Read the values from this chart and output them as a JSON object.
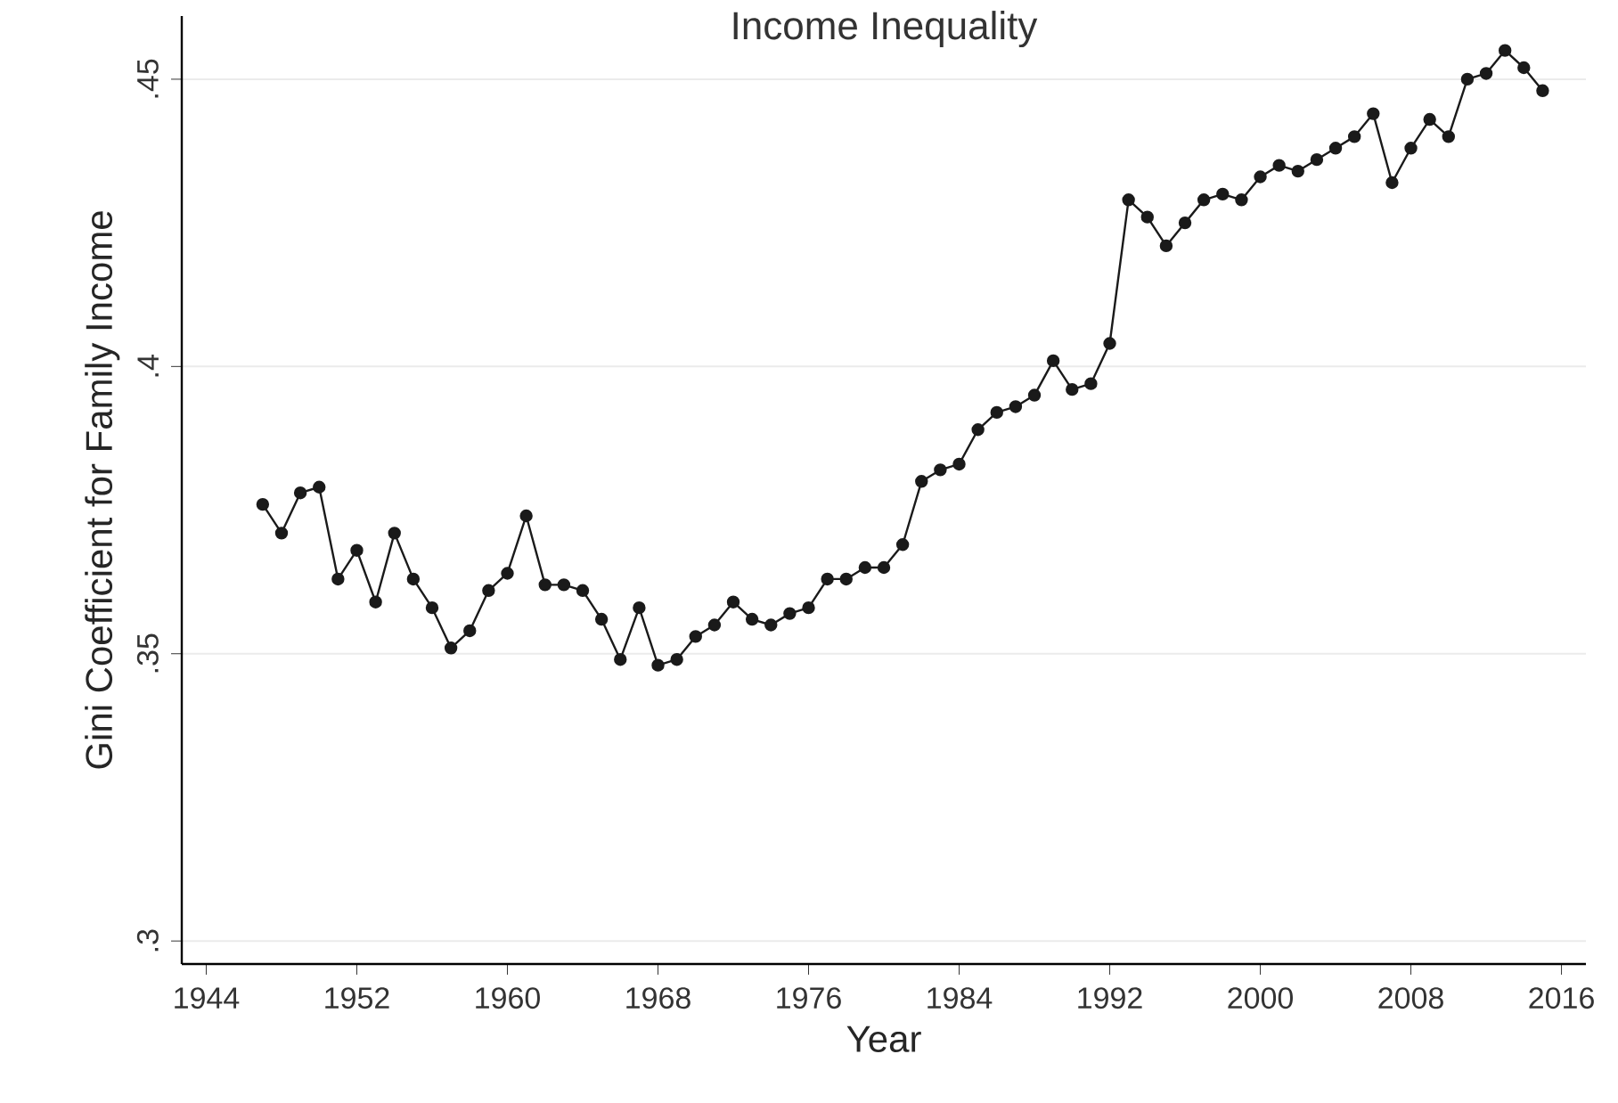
{
  "chart_data": {
    "type": "line",
    "title": "Income Inequality",
    "xlabel": "Year",
    "ylabel": "Gini Coefficient for Family Income",
    "x": [
      1947,
      1948,
      1949,
      1950,
      1951,
      1952,
      1953,
      1954,
      1955,
      1956,
      1957,
      1958,
      1959,
      1960,
      1961,
      1962,
      1963,
      1964,
      1965,
      1966,
      1967,
      1968,
      1969,
      1970,
      1971,
      1972,
      1973,
      1974,
      1975,
      1976,
      1977,
      1978,
      1979,
      1980,
      1981,
      1982,
      1983,
      1984,
      1985,
      1986,
      1987,
      1988,
      1989,
      1990,
      1991,
      1992,
      1993,
      1994,
      1995,
      1996,
      1997,
      1998,
      1999,
      2000,
      2001,
      2002,
      2003,
      2004,
      2005,
      2006,
      2007,
      2008,
      2009,
      2010,
      2011,
      2012,
      2013,
      2014,
      2015
    ],
    "values": [
      0.376,
      0.371,
      0.378,
      0.379,
      0.363,
      0.368,
      0.359,
      0.371,
      0.363,
      0.358,
      0.351,
      0.354,
      0.361,
      0.364,
      0.374,
      0.362,
      0.362,
      0.361,
      0.356,
      0.349,
      0.358,
      0.348,
      0.349,
      0.353,
      0.355,
      0.359,
      0.356,
      0.355,
      0.357,
      0.358,
      0.363,
      0.363,
      0.365,
      0.365,
      0.369,
      0.38,
      0.382,
      0.383,
      0.389,
      0.392,
      0.393,
      0.395,
      0.401,
      0.396,
      0.397,
      0.404,
      0.429,
      0.426,
      0.421,
      0.425,
      0.429,
      0.43,
      0.429,
      0.433,
      0.435,
      0.434,
      0.436,
      0.438,
      0.44,
      0.444,
      0.432,
      0.438,
      0.443,
      0.44,
      0.45,
      0.451,
      0.455,
      0.452,
      0.448
    ],
    "color": "#1a1a1a",
    "marker": "circle",
    "line_style": "solid",
    "grid": "y",
    "xlim": [
      1942.7,
      2017.3
    ],
    "ylim": [
      0.296,
      0.461
    ],
    "xticks": [
      1944,
      1952,
      1960,
      1968,
      1976,
      1984,
      1992,
      2000,
      2008,
      2016
    ],
    "yticks": [
      {
        "value": 0.3,
        "label": ".3"
      },
      {
        "value": 0.35,
        "label": ".35"
      },
      {
        "value": 0.4,
        "label": ".4"
      },
      {
        "value": 0.45,
        "label": ".45"
      }
    ]
  }
}
